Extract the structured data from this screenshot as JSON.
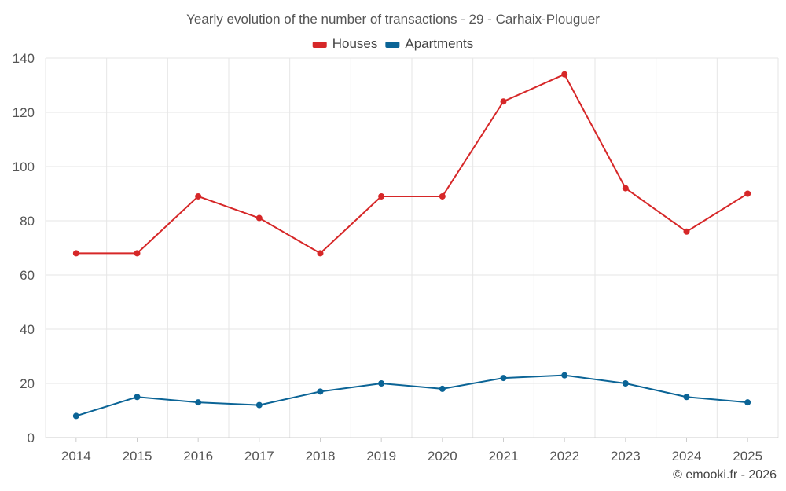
{
  "chart_data": {
    "type": "line",
    "title": "Yearly evolution of the number of transactions - 29 - Carhaix-Plouguer",
    "xlabel": "",
    "ylabel": "",
    "categories": [
      "2014",
      "2015",
      "2016",
      "2017",
      "2018",
      "2019",
      "2020",
      "2021",
      "2022",
      "2023",
      "2024",
      "2025"
    ],
    "ylim": [
      0,
      140
    ],
    "yticks": [
      0,
      20,
      40,
      60,
      80,
      100,
      120,
      140
    ],
    "grid": true,
    "legend_position": "top",
    "series": [
      {
        "name": "Houses",
        "color": "#d62728",
        "values": [
          68,
          68,
          89,
          81,
          68,
          89,
          89,
          124,
          134,
          92,
          76,
          90
        ]
      },
      {
        "name": "Apartments",
        "color": "#0b6496",
        "values": [
          8,
          15,
          13,
          12,
          17,
          20,
          18,
          22,
          23,
          20,
          15,
          13
        ]
      }
    ],
    "credit": "© emooki.fr - 2026"
  }
}
